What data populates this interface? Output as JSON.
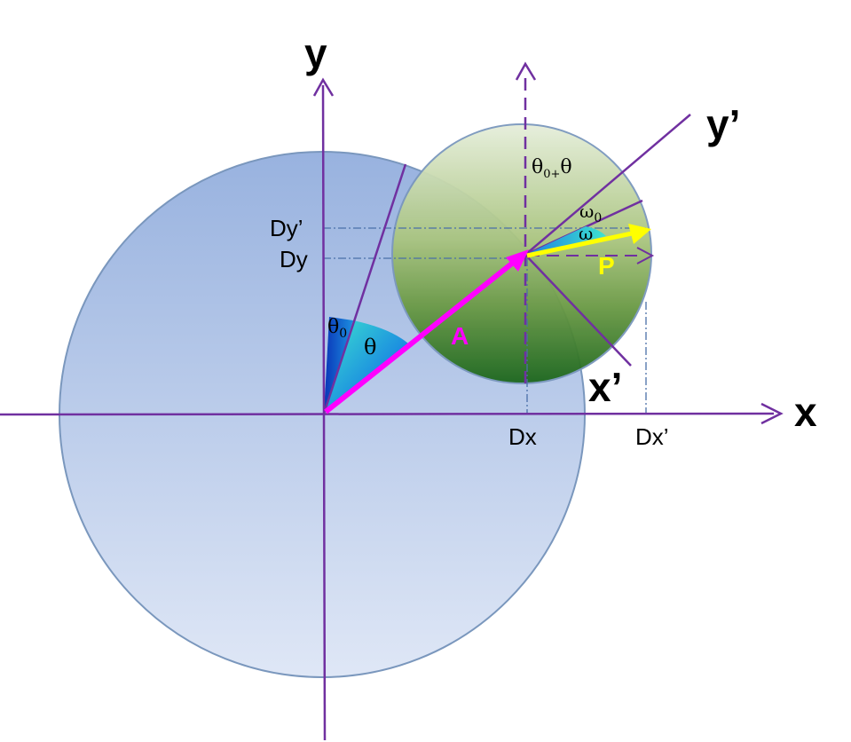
{
  "labels": {
    "axis_x": "x",
    "axis_y": "y",
    "axis_x_prime": "x’",
    "axis_y_prime": "y’",
    "dx": "Dx",
    "dx_prime": "Dx’",
    "dy": "Dy",
    "dy_prime": "Dy’",
    "theta": "θ",
    "theta0": "θ",
    "theta0_sub": "0",
    "theta_sum": "θ",
    "theta_sum_sub": "0+",
    "theta_sum_tail": "θ",
    "omega": "ω",
    "omega0": "ω",
    "omega0_sub": "0",
    "vector_a": "A",
    "vector_p": "P"
  },
  "colors": {
    "axis": "#7030a0",
    "big_circle_top": "#9ab3e0",
    "big_circle_bottom": "#dde6f5",
    "big_circle_stroke": "#7a97bd",
    "small_circle_top": "#e3ebd8",
    "small_circle_mid": "#9dbb6e",
    "small_circle_bottom": "#1f6b1f",
    "small_circle_stroke": "#7a97bd",
    "vector_a": "#ff00ff",
    "vector_p": "#ffff00",
    "dash_line": "#4a6fa8",
    "angle_fill_light": "#3fe0d0",
    "angle_fill_dark": "#0a3fc0"
  }
}
